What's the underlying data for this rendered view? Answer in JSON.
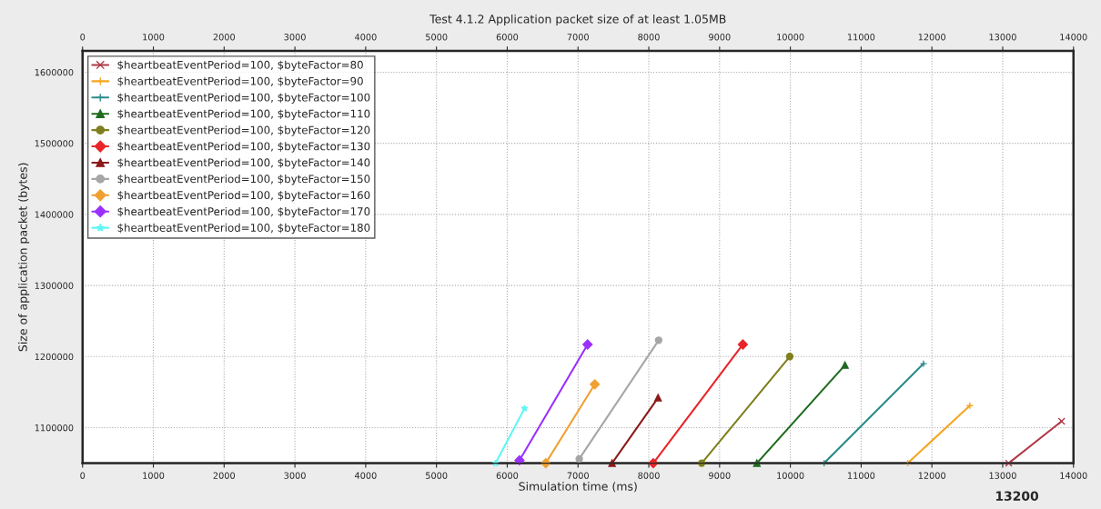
{
  "chart_data": {
    "type": "line",
    "title": "Test 4.1.2 Application packet size of at least 1.05MB",
    "xlabel": "Simulation time (ms)",
    "ylabel": "Size of application packet (bytes)",
    "xlim": [
      0,
      14000
    ],
    "xticks": [
      0,
      1000,
      2000,
      3000,
      4000,
      5000,
      6000,
      7000,
      8000,
      9000,
      10000,
      11000,
      12000,
      13000,
      14000
    ],
    "x2lim": [
      0,
      14000
    ],
    "x2ticks": [
      0,
      1000,
      2000,
      3000,
      4000,
      5000,
      6000,
      7000,
      8000,
      9000,
      10000,
      11000,
      12000,
      13000,
      14000
    ],
    "ylim": [
      1050000,
      1630000
    ],
    "yticks": [
      1100000,
      1200000,
      1300000,
      1400000,
      1500000,
      1600000
    ],
    "grid": true,
    "legend": "top left",
    "line_style": "solid",
    "annotations": [
      {
        "text": "13200",
        "x": 13200,
        "y": 1050000
      }
    ],
    "series": [
      {
        "name": "$heartbeatEventPeriod=100, $byteFactor=80",
        "color": "#b03a48",
        "marker": "cross",
        "x": [
          13085,
          13832
        ],
        "values": [
          1050000,
          1109000
        ]
      },
      {
        "name": "$heartbeatEventPeriod=100, $byteFactor=90",
        "color": "#f5a623",
        "marker": "plus",
        "x": [
          11658,
          12536
        ],
        "values": [
          1050000,
          1131000
        ]
      },
      {
        "name": "$heartbeatEventPeriod=100, $byteFactor=100",
        "color": "#2e8b8b",
        "marker": "plus",
        "x": [
          10477,
          11882
        ],
        "values": [
          1050000,
          1190000
        ]
      },
      {
        "name": "$heartbeatEventPeriod=100, $byteFactor=110",
        "color": "#1f6b1f",
        "marker": "triangle",
        "x": [
          9527,
          10772
        ],
        "values": [
          1050000,
          1188000
        ]
      },
      {
        "name": "$heartbeatEventPeriod=100, $byteFactor=120",
        "color": "#7f7f1f",
        "marker": "circle",
        "x": [
          8747,
          9991
        ],
        "values": [
          1050000,
          1200000
        ]
      },
      {
        "name": "$heartbeatEventPeriod=100, $byteFactor=130",
        "color": "#e8262a",
        "marker": "diamond",
        "x": [
          8063,
          9329
        ],
        "values": [
          1050000,
          1217000
        ]
      },
      {
        "name": "$heartbeatEventPeriod=100, $byteFactor=140",
        "color": "#8b1a1a",
        "marker": "triangle",
        "x": [
          7481,
          8131
        ],
        "values": [
          1050000,
          1142000
        ]
      },
      {
        "name": "$heartbeatEventPeriod=100, $byteFactor=150",
        "color": "#a6a6a6",
        "marker": "circle",
        "x": [
          7017,
          8139
        ],
        "values": [
          1056000,
          1223000
        ]
      },
      {
        "name": "$heartbeatEventPeriod=100, $byteFactor=160",
        "color": "#f0a030",
        "marker": "diamond",
        "x": [
          6544,
          7237
        ],
        "values": [
          1050000,
          1161000
        ]
      },
      {
        "name": "$heartbeatEventPeriod=100, $byteFactor=170",
        "color": "#9b30ff",
        "marker": "diamond",
        "x": [
          6173,
          7135
        ],
        "values": [
          1054000,
          1217000
        ]
      },
      {
        "name": "$heartbeatEventPeriod=100, $byteFactor=180",
        "color": "#5ff5f5",
        "marker": "star",
        "x": [
          5835,
          6244
        ],
        "values": [
          1050000,
          1127000
        ]
      }
    ]
  }
}
